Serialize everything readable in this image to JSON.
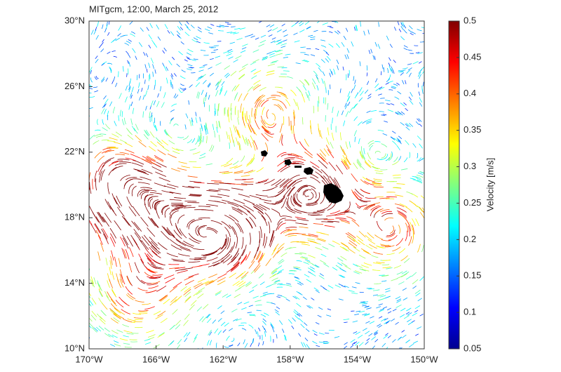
{
  "chart_data": {
    "type": "vector-field",
    "title": "MITgcm, 12:00, March 25, 2012",
    "xlim": [
      -170,
      -150
    ],
    "xticks": [
      {
        "value": -170,
        "label": "170°W"
      },
      {
        "value": -166,
        "label": "166°W"
      },
      {
        "value": -162,
        "label": "162°W"
      },
      {
        "value": -158,
        "label": "158°W"
      },
      {
        "value": -154,
        "label": "154°W"
      },
      {
        "value": -150,
        "label": "150°W"
      }
    ],
    "ylim": [
      10,
      30
    ],
    "yticks": [
      {
        "value": 10,
        "label": "10°N"
      },
      {
        "value": 14,
        "label": "14°N"
      },
      {
        "value": 18,
        "label": "18°N"
      },
      {
        "value": 22,
        "label": "22°N"
      },
      {
        "value": 26,
        "label": "26°N"
      },
      {
        "value": 30,
        "label": "30°N"
      }
    ],
    "colorbar": {
      "label": "Velocity [m/s]",
      "lim": [
        0.05,
        0.5
      ],
      "ticks": [
        0.05,
        0.1,
        0.15,
        0.2,
        0.25,
        0.3,
        0.35,
        0.4,
        0.45,
        0.5
      ],
      "colors": [
        "#00008f",
        "#0000ff",
        "#0080ff",
        "#00ffff",
        "#80ff80",
        "#ffff00",
        "#ff8000",
        "#ff0000",
        "#800000"
      ]
    }
  }
}
